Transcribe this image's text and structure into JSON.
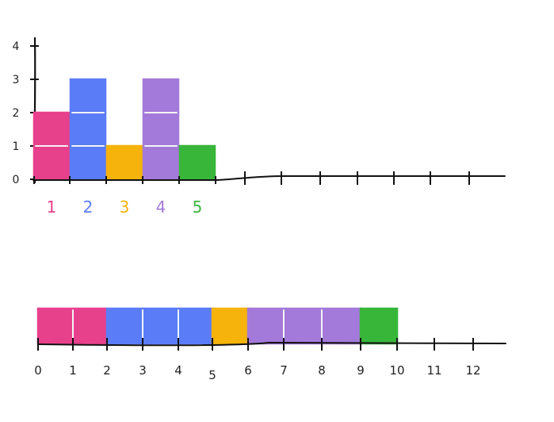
{
  "colors": {
    "axis": "#111111",
    "cell_line": "#f5f5f5",
    "palette": {
      "1": "#e8418c",
      "2": "#5b7cf7",
      "3": "#f5b30c",
      "4": "#a37ad9",
      "5": "#38b63a"
    }
  },
  "chart_data": [
    {
      "type": "bar",
      "categories": [
        "1",
        "2",
        "3",
        "4",
        "5"
      ],
      "values": [
        2,
        3,
        1,
        3,
        1
      ],
      "y_ticks": [
        "0",
        "1",
        "2",
        "3",
        "4"
      ],
      "ylim": [
        0,
        4
      ],
      "extra_x_ticks": 8,
      "grid": false
    },
    {
      "type": "bar",
      "segments": [
        {
          "category": "1",
          "start": 0,
          "end": 2
        },
        {
          "category": "2",
          "start": 2,
          "end": 5
        },
        {
          "category": "3",
          "start": 5,
          "end": 6
        },
        {
          "category": "4",
          "start": 6,
          "end": 9
        },
        {
          "category": "5",
          "start": 9,
          "end": 10
        }
      ],
      "x_ticks": [
        "0",
        "1",
        "2",
        "3",
        "4",
        "5",
        "6",
        "7",
        "8",
        "9",
        "10",
        "11",
        "12"
      ],
      "xlim": [
        0,
        12
      ],
      "grid": false
    }
  ]
}
